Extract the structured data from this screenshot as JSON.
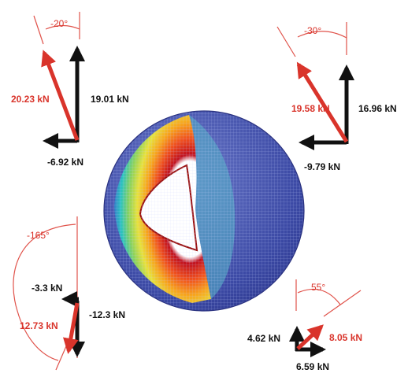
{
  "colors": {
    "force_red": "#d9342b",
    "force_black": "#111111",
    "guide_red": "#e0524a",
    "sphere_blue": "#2f3f9e"
  },
  "force_diagrams": [
    {
      "position": "top-left",
      "angle": "-20°",
      "resultant": "20.23 kN",
      "vertical": "19.01 kN",
      "horizontal": "-6.92 kN"
    },
    {
      "position": "top-right",
      "angle": "-30°",
      "resultant": "19.58 kN",
      "vertical": "16.96 kN",
      "horizontal": "-9.79 kN"
    },
    {
      "position": "bottom-left",
      "angle": "-165°",
      "resultant": "12.73 kN",
      "vertical": "-12.3 kN",
      "horizontal": "-3.3 kN"
    },
    {
      "position": "bottom-right",
      "angle": "55°",
      "resultant": "8.05 kN",
      "vertical": "4.62 kN",
      "horizontal": "6.59 kN"
    }
  ]
}
